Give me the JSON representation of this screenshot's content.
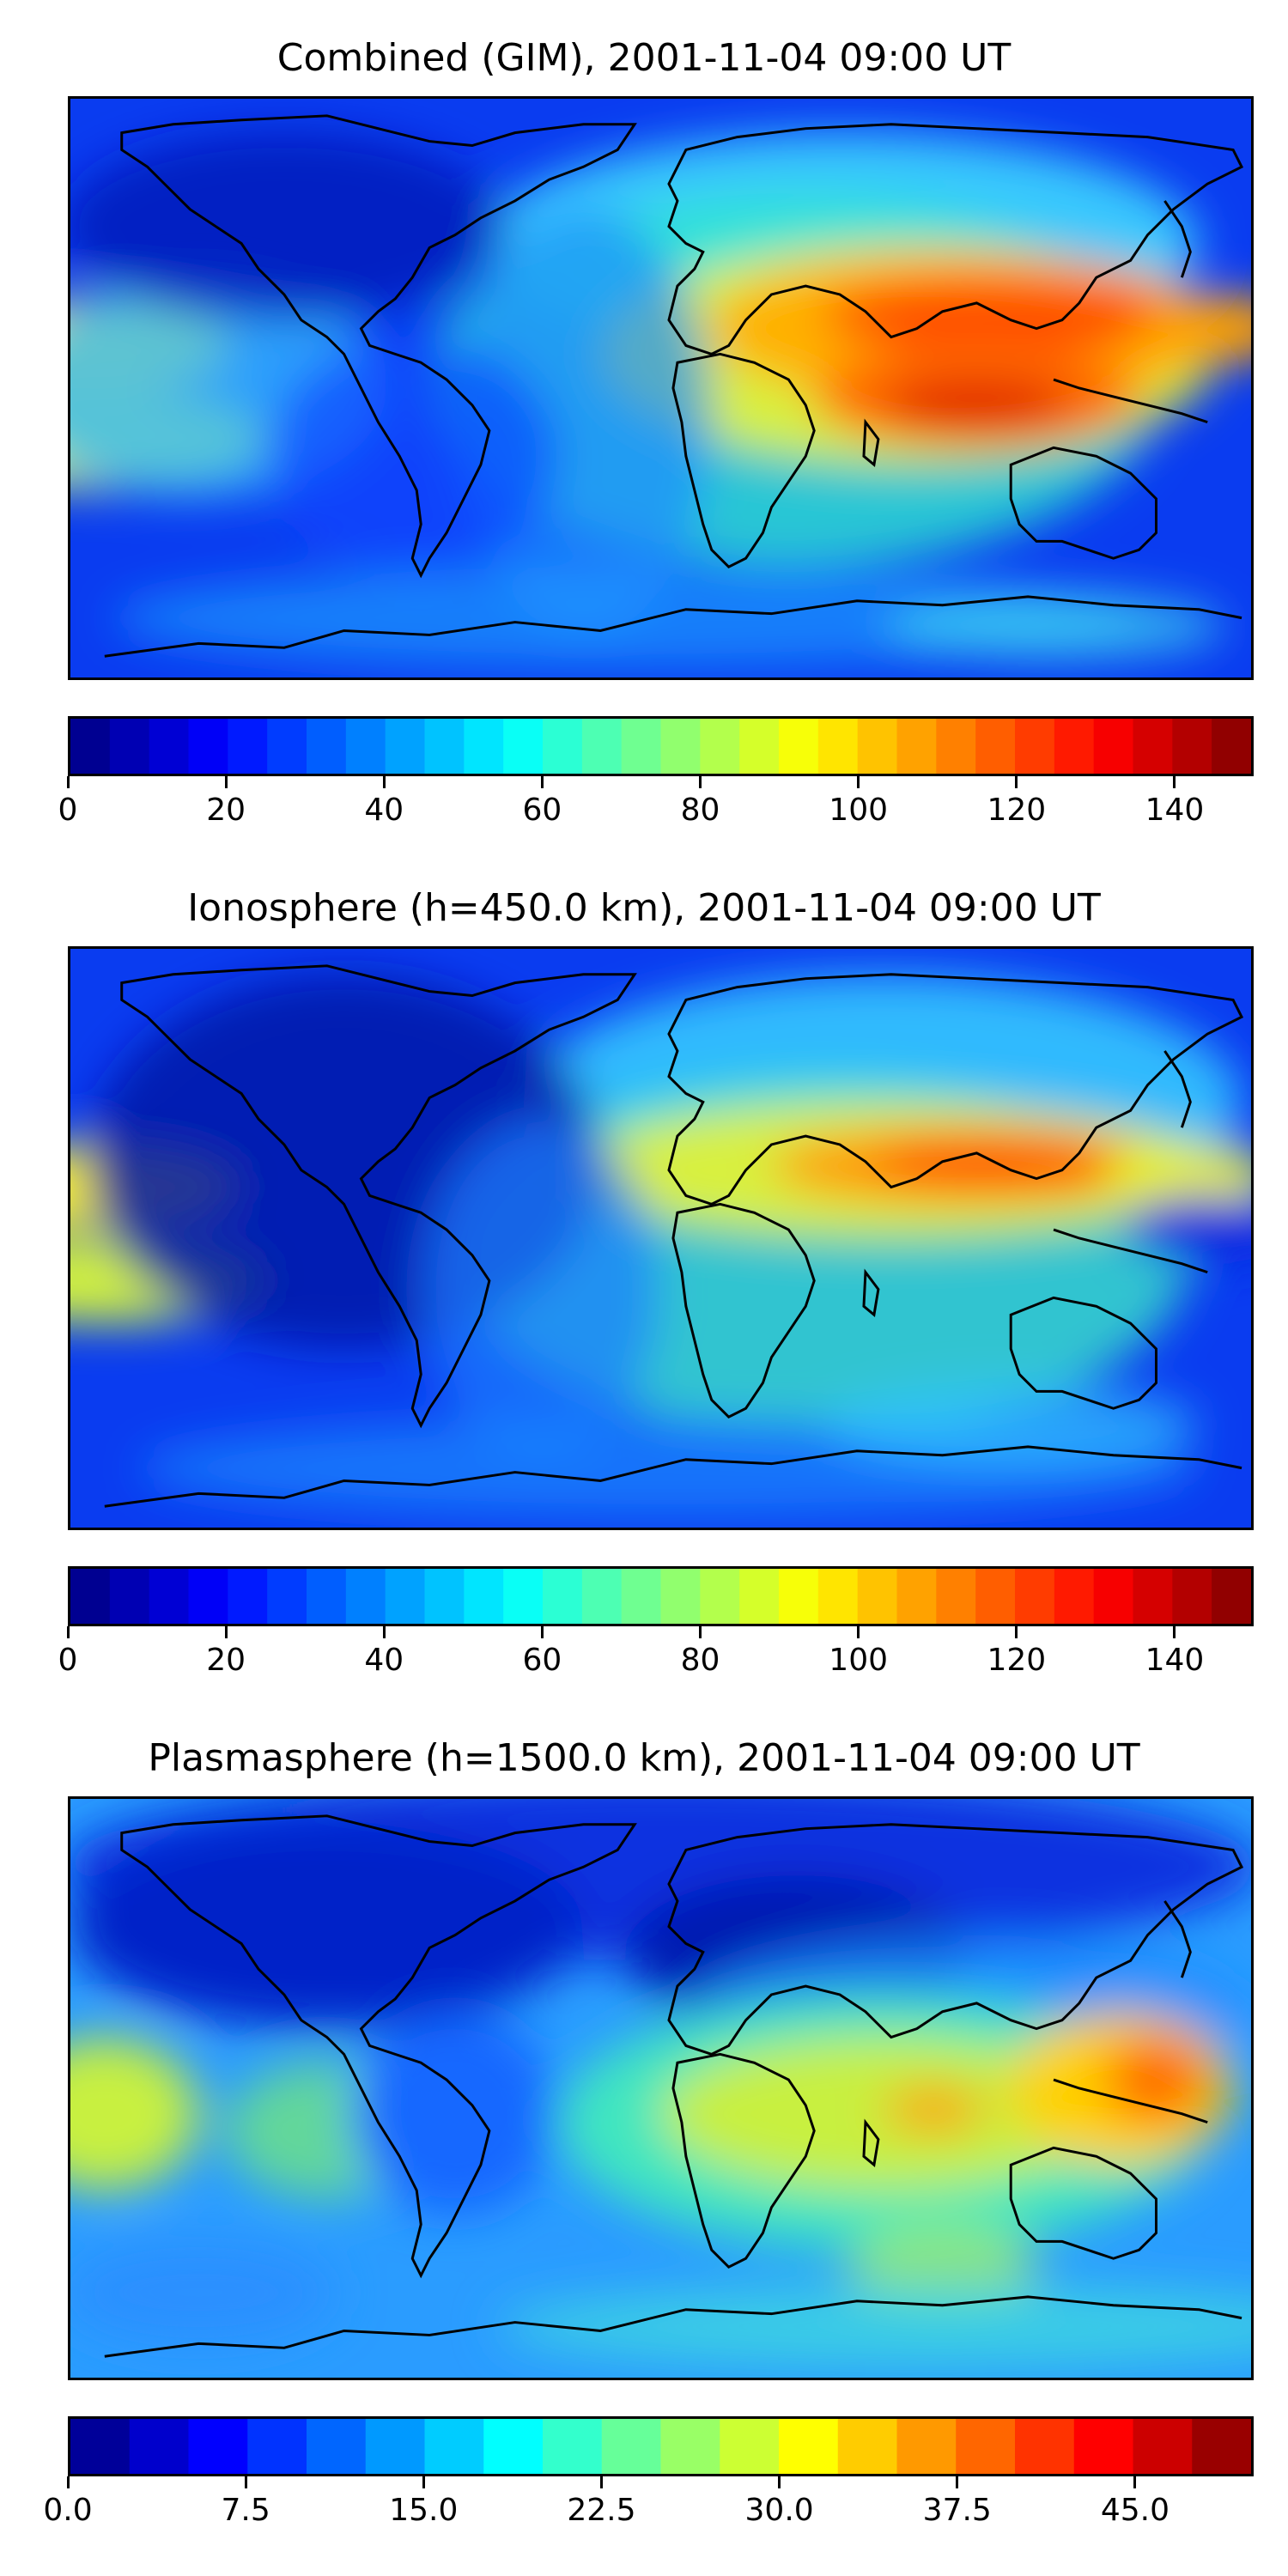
{
  "panels": [
    {
      "title": "Combined (GIM), 2001-11-04 09:00 UT",
      "colorbar": {
        "min": 0,
        "max": 150,
        "levels": 30,
        "ticks": [
          "0",
          "20",
          "40",
          "60",
          "80",
          "100",
          "120",
          "140"
        ],
        "tick_values": [
          0,
          20,
          40,
          60,
          80,
          100,
          120,
          140
        ]
      }
    },
    {
      "title": "Ionosphere  (h=450.0 km), 2001-11-04 09:00 UT",
      "colorbar": {
        "min": 0,
        "max": 150,
        "levels": 30,
        "ticks": [
          "0",
          "20",
          "40",
          "60",
          "80",
          "100",
          "120",
          "140"
        ],
        "tick_values": [
          0,
          20,
          40,
          60,
          80,
          100,
          120,
          140
        ]
      }
    },
    {
      "title": "Plasmasphere (h=1500.0 km), 2001-11-04 09:00 UT",
      "colorbar": {
        "min": 0,
        "max": 50,
        "levels": 20,
        "ticks": [
          "0.0",
          "7.5",
          "15.0",
          "22.5",
          "30.0",
          "37.5",
          "45.0"
        ],
        "tick_values": [
          0,
          7.5,
          15,
          22.5,
          30,
          37.5,
          45
        ]
      }
    }
  ],
  "colormap": "jet",
  "colors": {
    "coastline": "#000000"
  }
}
